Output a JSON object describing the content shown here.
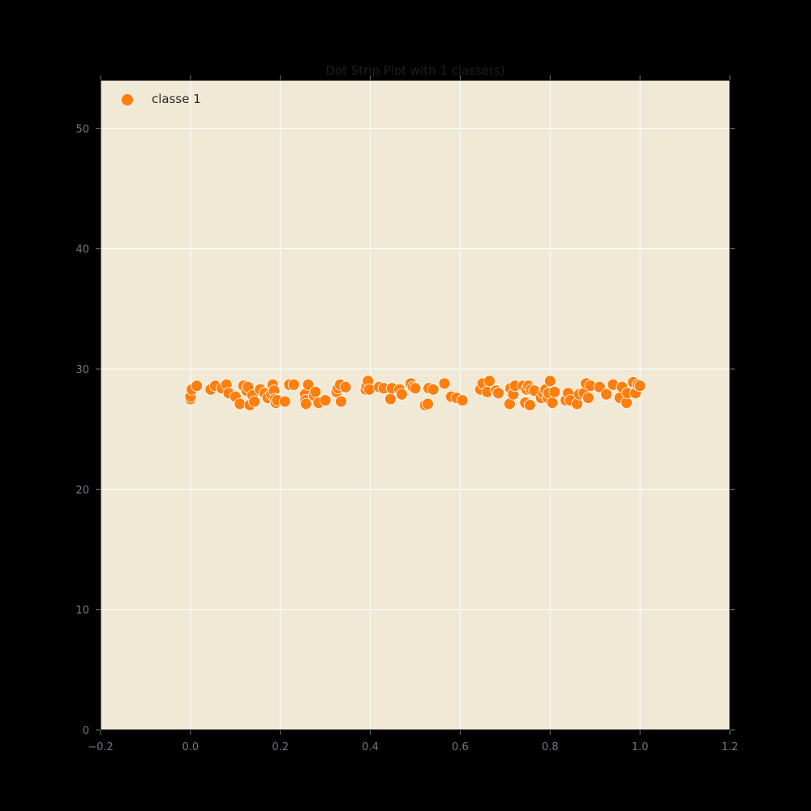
{
  "chart_data": {
    "type": "scatter",
    "title": "Dot Strip Plot with 1 classe(s)",
    "xlabel": "",
    "ylabel": "",
    "xlim": [
      -0.2,
      1.2
    ],
    "ylim": [
      0,
      54
    ],
    "xticks": [
      -0.2,
      0.0,
      0.2,
      0.4,
      0.6,
      0.8,
      1.0,
      1.2
    ],
    "yticks": [
      0,
      10,
      20,
      30,
      40,
      50
    ],
    "xtick_labels": [
      "−0.2",
      "0.0",
      "0.2",
      "0.4",
      "0.6",
      "0.8",
      "1.0",
      "1.2"
    ],
    "ytick_labels": [
      "0",
      "10",
      "20",
      "30",
      "40",
      "50"
    ],
    "grid": true,
    "legend_position": "top-left",
    "background_color": "#f0e9d6",
    "grid_color": "#ffffff",
    "series": [
      {
        "name": "classe 1",
        "color": "#ff7f0e",
        "points": [
          [
            0.0,
            27.5
          ],
          [
            0.0,
            27.7
          ],
          [
            0.003,
            28.3
          ],
          [
            0.014,
            28.6
          ],
          [
            0.045,
            28.3
          ],
          [
            0.055,
            28.6
          ],
          [
            0.07,
            28.4
          ],
          [
            0.08,
            28.7
          ],
          [
            0.085,
            28.0
          ],
          [
            0.1,
            27.7
          ],
          [
            0.11,
            27.1
          ],
          [
            0.118,
            28.6
          ],
          [
            0.125,
            28.2
          ],
          [
            0.128,
            28.5
          ],
          [
            0.132,
            27.0
          ],
          [
            0.138,
            27.8
          ],
          [
            0.142,
            27.3
          ],
          [
            0.155,
            28.3
          ],
          [
            0.165,
            28.0
          ],
          [
            0.172,
            27.6
          ],
          [
            0.18,
            27.9
          ],
          [
            0.183,
            28.7
          ],
          [
            0.186,
            28.2
          ],
          [
            0.188,
            27.5
          ],
          [
            0.19,
            27.2
          ],
          [
            0.193,
            27.4
          ],
          [
            0.21,
            27.3
          ],
          [
            0.22,
            28.7
          ],
          [
            0.23,
            28.7
          ],
          [
            0.255,
            27.9
          ],
          [
            0.256,
            27.4
          ],
          [
            0.257,
            27.1
          ],
          [
            0.262,
            28.7
          ],
          [
            0.275,
            27.8
          ],
          [
            0.278,
            28.1
          ],
          [
            0.285,
            27.2
          ],
          [
            0.3,
            27.4
          ],
          [
            0.325,
            28.1
          ],
          [
            0.328,
            28.4
          ],
          [
            0.333,
            28.7
          ],
          [
            0.335,
            27.3
          ],
          [
            0.345,
            28.5
          ],
          [
            0.39,
            28.3
          ],
          [
            0.392,
            28.6
          ],
          [
            0.395,
            29.0
          ],
          [
            0.398,
            28.3
          ],
          [
            0.42,
            28.5
          ],
          [
            0.43,
            28.4
          ],
          [
            0.445,
            27.5
          ],
          [
            0.448,
            28.4
          ],
          [
            0.465,
            28.3
          ],
          [
            0.47,
            27.9
          ],
          [
            0.49,
            28.8
          ],
          [
            0.495,
            28.5
          ],
          [
            0.5,
            28.4
          ],
          [
            0.522,
            27.0
          ],
          [
            0.528,
            27.1
          ],
          [
            0.53,
            28.4
          ],
          [
            0.54,
            28.3
          ],
          [
            0.565,
            28.8
          ],
          [
            0.58,
            27.7
          ],
          [
            0.592,
            27.6
          ],
          [
            0.605,
            27.4
          ],
          [
            0.645,
            28.3
          ],
          [
            0.65,
            28.8
          ],
          [
            0.66,
            28.1
          ],
          [
            0.665,
            29.0
          ],
          [
            0.68,
            28.2
          ],
          [
            0.685,
            28.0
          ],
          [
            0.71,
            27.1
          ],
          [
            0.712,
            28.4
          ],
          [
            0.718,
            27.9
          ],
          [
            0.722,
            28.6
          ],
          [
            0.74,
            28.6
          ],
          [
            0.745,
            27.2
          ],
          [
            0.748,
            28.3
          ],
          [
            0.752,
            28.6
          ],
          [
            0.755,
            27.0
          ],
          [
            0.758,
            28.3
          ],
          [
            0.765,
            28.2
          ],
          [
            0.78,
            27.6
          ],
          [
            0.785,
            28.0
          ],
          [
            0.79,
            28.3
          ],
          [
            0.795,
            27.6
          ],
          [
            0.797,
            28.0
          ],
          [
            0.8,
            29.0
          ],
          [
            0.805,
            27.2
          ],
          [
            0.81,
            28.1
          ],
          [
            0.835,
            27.4
          ],
          [
            0.84,
            28.0
          ],
          [
            0.845,
            27.4
          ],
          [
            0.86,
            27.1
          ],
          [
            0.865,
            27.9
          ],
          [
            0.875,
            28.0
          ],
          [
            0.88,
            28.8
          ],
          [
            0.885,
            27.6
          ],
          [
            0.89,
            28.6
          ],
          [
            0.91,
            28.5
          ],
          [
            0.925,
            27.9
          ],
          [
            0.94,
            28.7
          ],
          [
            0.955,
            27.6
          ],
          [
            0.96,
            28.5
          ],
          [
            0.97,
            27.2
          ],
          [
            0.972,
            28.0
          ],
          [
            0.985,
            28.9
          ],
          [
            0.99,
            28.0
          ],
          [
            0.995,
            28.7
          ],
          [
            1.0,
            28.6
          ]
        ]
      }
    ]
  }
}
